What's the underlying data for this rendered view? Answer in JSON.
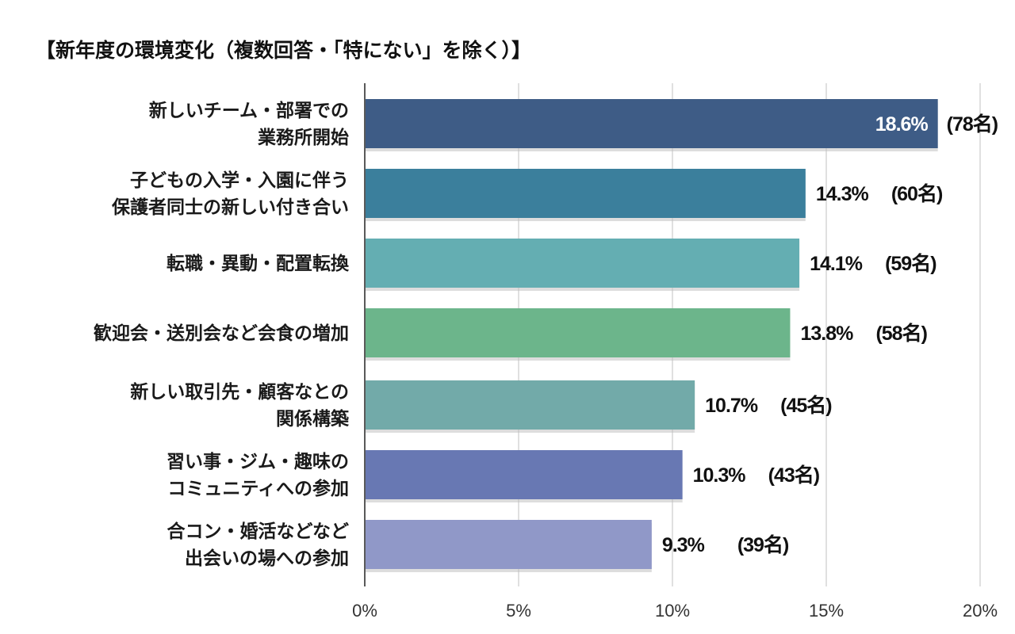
{
  "chart_data": {
    "type": "bar",
    "orientation": "horizontal",
    "title": "【新年度の環境変化（複数回答・「特にない」を除く）】",
    "xlabel": "",
    "ylabel": "",
    "xlim": [
      0,
      20
    ],
    "grid": true,
    "categories": [
      [
        "新しいチーム・部署での",
        "業務所開始"
      ],
      [
        "子どもの入学・入園に伴う",
        "保護者同士の新しい付き合い"
      ],
      [
        "転職・異動・配置転換"
      ],
      [
        "歓迎会・送別会など会食の増加"
      ],
      [
        "新しい取引先・顧客なとの",
        "関係構築"
      ],
      [
        "習い事・ジム・趣味の",
        "コミュニティへの参加"
      ],
      [
        "合コン・婚活などなど",
        "出会いの場への参加"
      ]
    ],
    "values": [
      18.6,
      14.3,
      14.1,
      13.8,
      10.7,
      10.3,
      9.3
    ],
    "value_labels": [
      "18.6%",
      "14.3%",
      "14.1%",
      "13.8%",
      "10.7%",
      "10.3%",
      "9.3%"
    ],
    "count_labels": [
      "(78名)",
      "(60名)",
      "(59名)",
      "(58名)",
      "(45名)",
      "(43名)",
      "(39名)"
    ],
    "colors": [
      "#3e5c86",
      "#3b7f9c",
      "#64aeb2",
      "#6cb58b",
      "#72aaa9",
      "#6878b3",
      "#9098c8"
    ],
    "xticks": [
      0,
      5,
      10,
      15,
      20
    ],
    "xtick_labels": [
      "0%",
      "5%",
      "10%",
      "15%",
      "20%"
    ]
  }
}
